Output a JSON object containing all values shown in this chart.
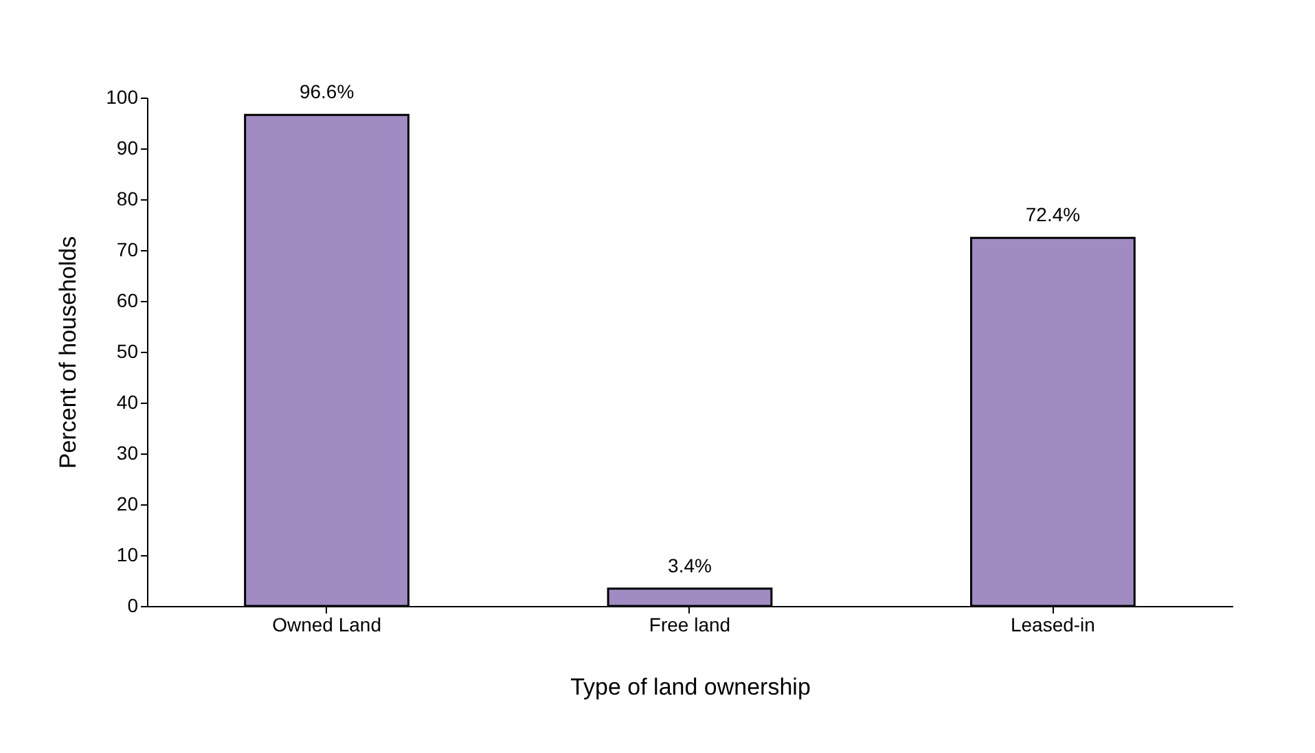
{
  "chart_data": {
    "type": "bar",
    "xlabel": "Type of land ownership",
    "ylabel": "Percent of households",
    "categories": [
      "Owned Land",
      "Free land",
      "Leased-in"
    ],
    "values": [
      96.6,
      3.4,
      72.4
    ],
    "value_labels": [
      "96.6%",
      "3.4%",
      "72.4%"
    ],
    "color": "#a08bc3",
    "ylim": [
      0,
      100
    ],
    "yticks": [
      0,
      10,
      20,
      30,
      40,
      50,
      60,
      70,
      80,
      90,
      100
    ],
    "grid": false
  }
}
